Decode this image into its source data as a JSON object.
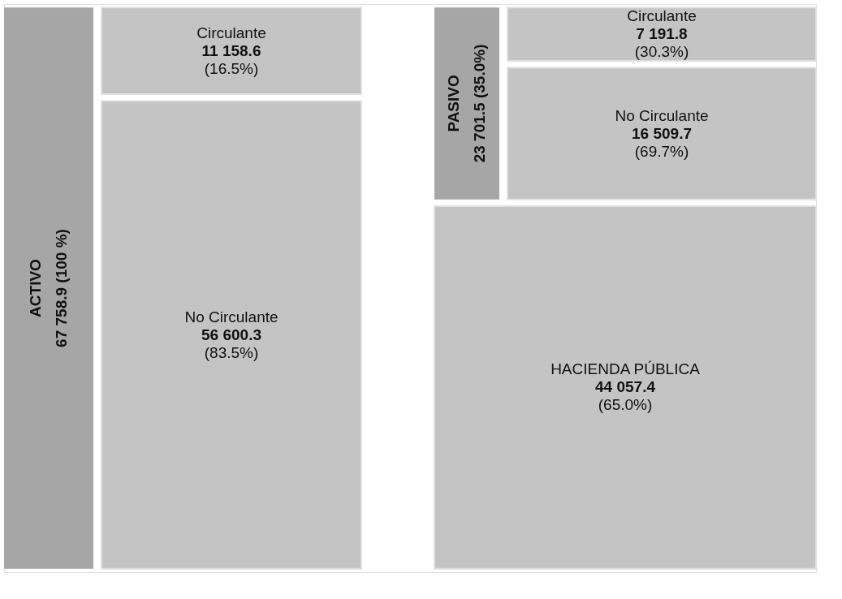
{
  "chart_data": {
    "type": "other",
    "categories": [
      "Circulante",
      "No Circulante",
      "Circulante",
      "No Circulante",
      "HACIENDA PÚBLICA"
    ],
    "values": [
      11158.6,
      56600.3,
      7191.8,
      16509.7,
      44057.4
    ],
    "value_labels": [
      "11 158.6",
      "56 600.3",
      "7 191.8",
      "16 509.7",
      "44 057.4"
    ],
    "colors": [
      "#c4c4c4",
      "#c4c4c4",
      "#c4c4c4",
      "#c4c4c4",
      "#c4c4c4"
    ],
    "annotations": [
      "ACTIVO",
      "67 758.9 (100 %)",
      "PASIVO",
      "23 701.5 (35.0%)",
      "(16.5%)",
      "(83.5%)",
      "(30.3%)",
      "(69.7%)",
      "(65.0%)"
    ]
  }
}
